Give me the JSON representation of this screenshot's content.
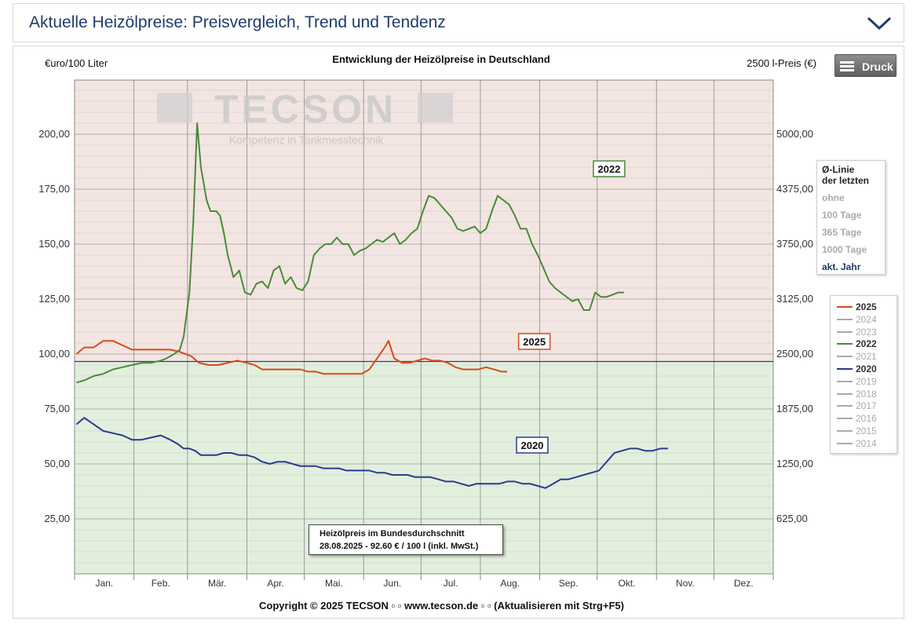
{
  "header": {
    "title": "Aktuelle Heizölpreise:  Preisvergleich, Trend und Tendenz"
  },
  "toolbar": {
    "print_label": "Druck"
  },
  "chart_data": {
    "type": "line",
    "title": "Entwicklung der Heizölpreise in Deutschland",
    "ylabel_left": "€uro/100 Liter",
    "ylabel_right": "2500 l-Preis (€)",
    "ylim": [
      0,
      230
    ],
    "yticks": [
      25,
      50,
      75,
      100,
      125,
      150,
      175,
      200
    ],
    "yticks_left_labels": [
      "25,00",
      "50,00",
      "75,00",
      "100,00",
      "125,00",
      "150,00",
      "175,00",
      "200,00"
    ],
    "yticks_right_labels": [
      "625,00",
      "1250,00",
      "1875,00",
      "2500,00",
      "3125,00",
      "3750,00",
      "4375,00",
      "5000,00"
    ],
    "x_months": [
      "Jan.",
      "Feb.",
      "Mär.",
      "Apr.",
      "Mai.",
      "Jun.",
      "Jul.",
      "Aug.",
      "Sep.",
      "Okt.",
      "Nov.",
      "Dez."
    ],
    "reference_line": 96.6,
    "grid": true,
    "watermark": {
      "brand": "TECSON",
      "tagline": "Kompetenz in Tankmesstechnik"
    },
    "series": [
      {
        "name": "2022",
        "color": "#4a8a3a",
        "label_at": [
          0.765,
          216
        ],
        "points": [
          [
            1,
            87
          ],
          [
            5,
            88
          ],
          [
            10,
            90
          ],
          [
            15,
            91
          ],
          [
            20,
            93
          ],
          [
            25,
            94
          ],
          [
            30,
            95
          ],
          [
            35,
            96
          ],
          [
            40,
            96
          ],
          [
            45,
            97
          ],
          [
            48,
            98
          ],
          [
            52,
            100
          ],
          [
            55,
            102
          ],
          [
            57,
            108
          ],
          [
            60,
            128
          ],
          [
            62,
            160
          ],
          [
            64,
            205
          ],
          [
            66,
            185
          ],
          [
            69,
            170
          ],
          [
            71,
            165
          ],
          [
            74,
            165
          ],
          [
            76,
            163
          ],
          [
            78,
            155
          ],
          [
            80,
            145
          ],
          [
            83,
            135
          ],
          [
            86,
            138
          ],
          [
            89,
            128
          ],
          [
            92,
            127
          ],
          [
            95,
            132
          ],
          [
            98,
            133
          ],
          [
            101,
            130
          ],
          [
            104,
            138
          ],
          [
            107,
            140
          ],
          [
            110,
            132
          ],
          [
            113,
            135
          ],
          [
            116,
            130
          ],
          [
            119,
            129
          ],
          [
            122,
            133
          ],
          [
            125,
            145
          ],
          [
            128,
            148
          ],
          [
            131,
            150
          ],
          [
            134,
            150
          ],
          [
            137,
            153
          ],
          [
            140,
            150
          ],
          [
            143,
            150
          ],
          [
            146,
            145
          ],
          [
            149,
            147
          ],
          [
            152,
            148
          ],
          [
            155,
            150
          ],
          [
            158,
            152
          ],
          [
            161,
            151
          ],
          [
            164,
            153
          ],
          [
            167,
            155
          ],
          [
            170,
            150
          ],
          [
            173,
            152
          ],
          [
            176,
            155
          ],
          [
            179,
            157
          ],
          [
            182,
            165
          ],
          [
            185,
            172
          ],
          [
            188,
            171
          ],
          [
            191,
            168
          ],
          [
            194,
            165
          ],
          [
            197,
            162
          ],
          [
            200,
            157
          ],
          [
            203,
            156
          ],
          [
            206,
            157
          ],
          [
            209,
            158
          ],
          [
            212,
            155
          ],
          [
            215,
            157
          ],
          [
            218,
            165
          ],
          [
            221,
            172
          ],
          [
            224,
            170
          ],
          [
            227,
            168
          ],
          [
            230,
            163
          ],
          [
            233,
            157
          ],
          [
            236,
            157
          ],
          [
            239,
            150
          ],
          [
            242,
            145
          ],
          [
            245,
            139
          ],
          [
            248,
            133
          ],
          [
            251,
            130
          ],
          [
            254,
            128
          ],
          [
            257,
            126
          ],
          [
            260,
            124
          ],
          [
            263,
            125
          ],
          [
            266,
            120
          ],
          [
            269,
            120
          ],
          [
            272,
            128
          ],
          [
            275,
            126
          ],
          [
            278,
            126
          ],
          [
            281,
            127
          ],
          [
            284,
            128
          ],
          [
            287,
            128
          ]
        ]
      },
      {
        "name": "2025",
        "color": "#d84a1a",
        "label_at": [
          0.658,
          436
        ],
        "points": [
          [
            1,
            100
          ],
          [
            5,
            103
          ],
          [
            10,
            103
          ],
          [
            15,
            106
          ],
          [
            20,
            106
          ],
          [
            25,
            104
          ],
          [
            30,
            102
          ],
          [
            35,
            102
          ],
          [
            40,
            102
          ],
          [
            45,
            102
          ],
          [
            50,
            102
          ],
          [
            55,
            101
          ],
          [
            58,
            100
          ],
          [
            61,
            99
          ],
          [
            65,
            96
          ],
          [
            70,
            95
          ],
          [
            75,
            95
          ],
          [
            80,
            96
          ],
          [
            85,
            97
          ],
          [
            90,
            96
          ],
          [
            94,
            95
          ],
          [
            98,
            93
          ],
          [
            102,
            93
          ],
          [
            106,
            93
          ],
          [
            110,
            93
          ],
          [
            114,
            93
          ],
          [
            118,
            93
          ],
          [
            122,
            92
          ],
          [
            126,
            92
          ],
          [
            130,
            91
          ],
          [
            134,
            91
          ],
          [
            138,
            91
          ],
          [
            142,
            91
          ],
          [
            146,
            91
          ],
          [
            150,
            91
          ],
          [
            154,
            93
          ],
          [
            158,
            98
          ],
          [
            162,
            103
          ],
          [
            164,
            106
          ],
          [
            167,
            98
          ],
          [
            171,
            96
          ],
          [
            175,
            96
          ],
          [
            179,
            97
          ],
          [
            183,
            98
          ],
          [
            187,
            97
          ],
          [
            191,
            97
          ],
          [
            195,
            96
          ],
          [
            199,
            94
          ],
          [
            203,
            93
          ],
          [
            207,
            93
          ],
          [
            211,
            93
          ],
          [
            215,
            94
          ],
          [
            219,
            93
          ],
          [
            223,
            92
          ],
          [
            226,
            92
          ]
        ]
      },
      {
        "name": "2020",
        "color": "#2a3a8f",
        "label_at": [
          0.655,
          568
        ],
        "points": [
          [
            1,
            68
          ],
          [
            5,
            71
          ],
          [
            10,
            68
          ],
          [
            15,
            65
          ],
          [
            20,
            64
          ],
          [
            25,
            63
          ],
          [
            30,
            61
          ],
          [
            35,
            61
          ],
          [
            40,
            62
          ],
          [
            45,
            63
          ],
          [
            50,
            61
          ],
          [
            54,
            59
          ],
          [
            57,
            57
          ],
          [
            60,
            57
          ],
          [
            63,
            56
          ],
          [
            66,
            54
          ],
          [
            70,
            54
          ],
          [
            74,
            54
          ],
          [
            78,
            55
          ],
          [
            82,
            55
          ],
          [
            86,
            54
          ],
          [
            90,
            54
          ],
          [
            94,
            53
          ],
          [
            98,
            51
          ],
          [
            102,
            50
          ],
          [
            106,
            51
          ],
          [
            110,
            51
          ],
          [
            114,
            50
          ],
          [
            118,
            49
          ],
          [
            122,
            49
          ],
          [
            126,
            49
          ],
          [
            130,
            48
          ],
          [
            134,
            48
          ],
          [
            138,
            48
          ],
          [
            142,
            47
          ],
          [
            146,
            47
          ],
          [
            150,
            47
          ],
          [
            154,
            47
          ],
          [
            158,
            46
          ],
          [
            162,
            46
          ],
          [
            166,
            45
          ],
          [
            170,
            45
          ],
          [
            174,
            45
          ],
          [
            178,
            44
          ],
          [
            182,
            44
          ],
          [
            186,
            44
          ],
          [
            190,
            43
          ],
          [
            194,
            42
          ],
          [
            198,
            42
          ],
          [
            202,
            41
          ],
          [
            206,
            40
          ],
          [
            210,
            41
          ],
          [
            214,
            41
          ],
          [
            218,
            41
          ],
          [
            222,
            41
          ],
          [
            226,
            42
          ],
          [
            230,
            42
          ],
          [
            234,
            41
          ],
          [
            238,
            41
          ],
          [
            242,
            40
          ],
          [
            246,
            39
          ],
          [
            250,
            41
          ],
          [
            254,
            43
          ],
          [
            258,
            43
          ],
          [
            262,
            44
          ],
          [
            266,
            45
          ],
          [
            270,
            46
          ],
          [
            274,
            47
          ],
          [
            278,
            51
          ],
          [
            282,
            55
          ],
          [
            286,
            56
          ],
          [
            290,
            57
          ],
          [
            294,
            57
          ],
          [
            298,
            56
          ],
          [
            302,
            56
          ],
          [
            306,
            57
          ],
          [
            310,
            57
          ]
        ]
      }
    ],
    "legend": [
      {
        "name": "2025",
        "active": true,
        "color": "#d84a1a"
      },
      {
        "name": "2024",
        "active": false,
        "color": "#aaaaaa"
      },
      {
        "name": "2023",
        "active": false,
        "color": "#aaaaaa"
      },
      {
        "name": "2022",
        "active": true,
        "color": "#4a8a3a"
      },
      {
        "name": "2021",
        "active": false,
        "color": "#aaaaaa"
      },
      {
        "name": "2020",
        "active": true,
        "color": "#2a3a8f"
      },
      {
        "name": "2019",
        "active": false,
        "color": "#aaaaaa"
      },
      {
        "name": "2018",
        "active": false,
        "color": "#aaaaaa"
      },
      {
        "name": "2017",
        "active": false,
        "color": "#aaaaaa"
      },
      {
        "name": "2016",
        "active": false,
        "color": "#aaaaaa"
      },
      {
        "name": "2015",
        "active": false,
        "color": "#aaaaaa"
      },
      {
        "name": "2014",
        "active": false,
        "color": "#aaaaaa"
      }
    ]
  },
  "average_box": {
    "title_line1": "Ø-Linie",
    "title_line2": "der letzten",
    "options": [
      {
        "label": "ohne",
        "active": false
      },
      {
        "label": "100 Tage",
        "active": false
      },
      {
        "label": "365 Tage",
        "active": false
      },
      {
        "label": "1000 Tage",
        "active": false
      },
      {
        "label": "akt. Jahr",
        "active": true
      }
    ]
  },
  "info_box": {
    "line1": "Heizölpreis im Bundesdurchschnitt",
    "line2": "28.08.2025 - 92.60 € / 100 l (inkl. MwSt.)"
  },
  "footer": {
    "copyright": "Copyright © 2025 TECSON ▫ ▫ www.tecson.de ▫ ▫ (Aktualisieren mit Strg+F5)"
  }
}
